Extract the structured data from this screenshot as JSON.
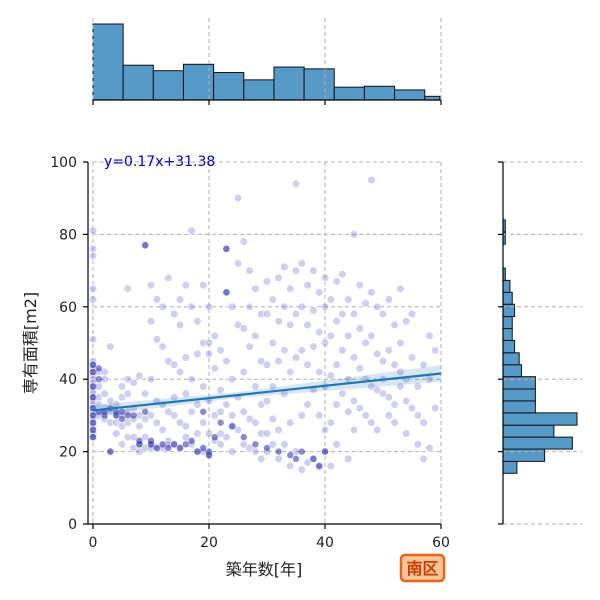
{
  "chart_data": {
    "type": "scatter",
    "xlabel": "築年数[年]",
    "ylabel": "専有面積[m2]",
    "xlim": [
      0,
      60
    ],
    "ylim": [
      0,
      100
    ],
    "xticks": [
      0,
      20,
      40,
      60
    ],
    "yticks": [
      0,
      20,
      40,
      60,
      80,
      100
    ],
    "grid": true,
    "regression": {
      "label": "y=0.17x+31.38",
      "slope": 0.17,
      "intercept": 31.38
    },
    "badge": "南区",
    "colors": {
      "points": "#6a6ad0",
      "regression": "#1f77b4",
      "hist": "#5799c7",
      "label": "#0000cc"
    },
    "points": [
      [
        0,
        81
      ],
      [
        0,
        76
      ],
      [
        0,
        74
      ],
      [
        0,
        65
      ],
      [
        0,
        62
      ],
      [
        0,
        45
      ],
      [
        0,
        44
      ],
      [
        0,
        43
      ],
      [
        0,
        42
      ],
      [
        0,
        41
      ],
      [
        0,
        40
      ],
      [
        0,
        39
      ],
      [
        0,
        38
      ],
      [
        0,
        37
      ],
      [
        0,
        36
      ],
      [
        0,
        35
      ],
      [
        0,
        34
      ],
      [
        0,
        33
      ],
      [
        0,
        32
      ],
      [
        0,
        31
      ],
      [
        0,
        30
      ],
      [
        0,
        29
      ],
      [
        0,
        28
      ],
      [
        0,
        27
      ],
      [
        0,
        26
      ],
      [
        0,
        25
      ],
      [
        0,
        24
      ],
      [
        0,
        51
      ],
      [
        1,
        42
      ],
      [
        1,
        38
      ],
      [
        1,
        35
      ],
      [
        1,
        33
      ],
      [
        1,
        30
      ],
      [
        2,
        42
      ],
      [
        2,
        40
      ],
      [
        2,
        36
      ],
      [
        2,
        32
      ],
      [
        2,
        29
      ],
      [
        3,
        34
      ],
      [
        3,
        31
      ],
      [
        3,
        28
      ],
      [
        3,
        20
      ],
      [
        3,
        49
      ],
      [
        4,
        33
      ],
      [
        4,
        30
      ],
      [
        4,
        28
      ],
      [
        4,
        25
      ],
      [
        5,
        38
      ],
      [
        5,
        35
      ],
      [
        5,
        30
      ],
      [
        5,
        27
      ],
      [
        5,
        22
      ],
      [
        6,
        40
      ],
      [
        6,
        36
      ],
      [
        6,
        31
      ],
      [
        6,
        28
      ],
      [
        6,
        24
      ],
      [
        6,
        65
      ],
      [
        7,
        39
      ],
      [
        7,
        32
      ],
      [
        7,
        29
      ],
      [
        7,
        24
      ],
      [
        7,
        21
      ],
      [
        8,
        41
      ],
      [
        8,
        30
      ],
      [
        8,
        27
      ],
      [
        8,
        22
      ],
      [
        8,
        20
      ],
      [
        9,
        77
      ],
      [
        9,
        36
      ],
      [
        9,
        29
      ],
      [
        9,
        24
      ],
      [
        9,
        21
      ],
      [
        10,
        66
      ],
      [
        10,
        56
      ],
      [
        10,
        40
      ],
      [
        10,
        30
      ],
      [
        10,
        22
      ],
      [
        10,
        21
      ],
      [
        11,
        62
      ],
      [
        11,
        51
      ],
      [
        11,
        34
      ],
      [
        11,
        28
      ],
      [
        11,
        21
      ],
      [
        12,
        60
      ],
      [
        12,
        49
      ],
      [
        12,
        33
      ],
      [
        12,
        26
      ],
      [
        12,
        21
      ],
      [
        13,
        68
      ],
      [
        13,
        45
      ],
      [
        13,
        31
      ],
      [
        13,
        23
      ],
      [
        13,
        22
      ],
      [
        14,
        58
      ],
      [
        14,
        44
      ],
      [
        14,
        30
      ],
      [
        14,
        22
      ],
      [
        14,
        35
      ],
      [
        15,
        62
      ],
      [
        15,
        55
      ],
      [
        15,
        42
      ],
      [
        15,
        28
      ],
      [
        15,
        21
      ],
      [
        16,
        66
      ],
      [
        16,
        46
      ],
      [
        16,
        36
      ],
      [
        16,
        27
      ],
      [
        16,
        24
      ],
      [
        17,
        81
      ],
      [
        17,
        60
      ],
      [
        17,
        40
      ],
      [
        17,
        31
      ],
      [
        17,
        22
      ],
      [
        18,
        56
      ],
      [
        18,
        47
      ],
      [
        18,
        33
      ],
      [
        18,
        25
      ],
      [
        18,
        20
      ],
      [
        19,
        66
      ],
      [
        19,
        50
      ],
      [
        19,
        38
      ],
      [
        19,
        28
      ],
      [
        19,
        20
      ],
      [
        20,
        60
      ],
      [
        20,
        50
      ],
      [
        20,
        47
      ],
      [
        20,
        34
      ],
      [
        20,
        25
      ],
      [
        20,
        19
      ],
      [
        21,
        52
      ],
      [
        21,
        43
      ],
      [
        21,
        30
      ],
      [
        21,
        23
      ],
      [
        22,
        48
      ],
      [
        22,
        37
      ],
      [
        22,
        31
      ],
      [
        22,
        25
      ],
      [
        22,
        22
      ],
      [
        23,
        76
      ],
      [
        23,
        64
      ],
      [
        23,
        45
      ],
      [
        23,
        33
      ],
      [
        23,
        24
      ],
      [
        24,
        60
      ],
      [
        24,
        40
      ],
      [
        24,
        30
      ],
      [
        24,
        27
      ],
      [
        24,
        20
      ],
      [
        25,
        90
      ],
      [
        25,
        72
      ],
      [
        25,
        55
      ],
      [
        25,
        35
      ],
      [
        25,
        26
      ],
      [
        26,
        78
      ],
      [
        26,
        54
      ],
      [
        26,
        42
      ],
      [
        26,
        31
      ],
      [
        26,
        22
      ],
      [
        27,
        70
      ],
      [
        27,
        60
      ],
      [
        27,
        49
      ],
      [
        27,
        29
      ],
      [
        27,
        21
      ],
      [
        28,
        65
      ],
      [
        28,
        52
      ],
      [
        28,
        38
      ],
      [
        28,
        28
      ],
      [
        28,
        20
      ],
      [
        29,
        58
      ],
      [
        29,
        45
      ],
      [
        29,
        33
      ],
      [
        29,
        25
      ],
      [
        29,
        18
      ],
      [
        30,
        67
      ],
      [
        30,
        58
      ],
      [
        30,
        44
      ],
      [
        30,
        34
      ],
      [
        30,
        25
      ],
      [
        30,
        20
      ],
      [
        31,
        62
      ],
      [
        31,
        50
      ],
      [
        31,
        38
      ],
      [
        31,
        29
      ],
      [
        31,
        22
      ],
      [
        32,
        68
      ],
      [
        32,
        56
      ],
      [
        32,
        45
      ],
      [
        32,
        26
      ],
      [
        32,
        18
      ],
      [
        33,
        71
      ],
      [
        33,
        60
      ],
      [
        33,
        48
      ],
      [
        33,
        36
      ],
      [
        33,
        22
      ],
      [
        34,
        65
      ],
      [
        34,
        55
      ],
      [
        34,
        42
      ],
      [
        34,
        28
      ],
      [
        34,
        16
      ],
      [
        35,
        94
      ],
      [
        35,
        70
      ],
      [
        35,
        58
      ],
      [
        35,
        46
      ],
      [
        35,
        20
      ],
      [
        36,
        72
      ],
      [
        36,
        60
      ],
      [
        36,
        48
      ],
      [
        36,
        30
      ],
      [
        36,
        15
      ],
      [
        37,
        66
      ],
      [
        37,
        55
      ],
      [
        37,
        44
      ],
      [
        37,
        33
      ],
      [
        37,
        17
      ],
      [
        38,
        70
      ],
      [
        38,
        59
      ],
      [
        38,
        49
      ],
      [
        38,
        37
      ],
      [
        38,
        18
      ],
      [
        39,
        64
      ],
      [
        39,
        53
      ],
      [
        39,
        42
      ],
      [
        39,
        30
      ],
      [
        39,
        16
      ],
      [
        40,
        68
      ],
      [
        40,
        60
      ],
      [
        40,
        50
      ],
      [
        40,
        38
      ],
      [
        40,
        26
      ],
      [
        40,
        20
      ],
      [
        41,
        62
      ],
      [
        41,
        52
      ],
      [
        41,
        41
      ],
      [
        41,
        28
      ],
      [
        41,
        16
      ],
      [
        42,
        67
      ],
      [
        42,
        56
      ],
      [
        42,
        44
      ],
      [
        42,
        33
      ],
      [
        42,
        22
      ],
      [
        43,
        69
      ],
      [
        43,
        58
      ],
      [
        43,
        48
      ],
      [
        43,
        36
      ],
      [
        44,
        62
      ],
      [
        44,
        52
      ],
      [
        44,
        40
      ],
      [
        44,
        31
      ],
      [
        44,
        18
      ],
      [
        45,
        80
      ],
      [
        45,
        58
      ],
      [
        45,
        46
      ],
      [
        45,
        34
      ],
      [
        45,
        26
      ],
      [
        46,
        66
      ],
      [
        46,
        54
      ],
      [
        46,
        43
      ],
      [
        46,
        32
      ],
      [
        47,
        61
      ],
      [
        47,
        50
      ],
      [
        47,
        40
      ],
      [
        47,
        30
      ],
      [
        48,
        95
      ],
      [
        48,
        64
      ],
      [
        48,
        52
      ],
      [
        48,
        38
      ],
      [
        48,
        28
      ],
      [
        49,
        60
      ],
      [
        49,
        47
      ],
      [
        49,
        37
      ],
      [
        49,
        26
      ],
      [
        50,
        58
      ],
      [
        50,
        45
      ],
      [
        50,
        40
      ],
      [
        50,
        36
      ],
      [
        51,
        62
      ],
      [
        51,
        48
      ],
      [
        51,
        35
      ],
      [
        51,
        30
      ],
      [
        52,
        55
      ],
      [
        52,
        44
      ],
      [
        52,
        33
      ],
      [
        52,
        28
      ],
      [
        53,
        65
      ],
      [
        53,
        50
      ],
      [
        53,
        42
      ],
      [
        53,
        38
      ],
      [
        54,
        56
      ],
      [
        54,
        40
      ],
      [
        54,
        34
      ],
      [
        54,
        25
      ],
      [
        55,
        58
      ],
      [
        55,
        46
      ],
      [
        55,
        32
      ],
      [
        56,
        38
      ],
      [
        56,
        30
      ],
      [
        56,
        22
      ],
      [
        57,
        44
      ],
      [
        57,
        28
      ],
      [
        57,
        18
      ],
      [
        58,
        52
      ],
      [
        58,
        40
      ],
      [
        58,
        21
      ],
      [
        59,
        48
      ],
      [
        59,
        32
      ]
    ],
    "dark_points": [
      [
        0,
        44
      ],
      [
        0,
        42
      ],
      [
        0,
        38
      ],
      [
        0,
        35
      ],
      [
        0,
        32
      ],
      [
        0,
        30
      ],
      [
        0,
        28
      ],
      [
        0,
        26
      ],
      [
        0,
        24
      ],
      [
        1,
        43
      ],
      [
        1,
        40
      ],
      [
        1,
        31
      ],
      [
        2,
        31
      ],
      [
        2,
        30
      ],
      [
        3,
        32
      ],
      [
        3,
        20
      ],
      [
        4,
        31
      ],
      [
        4,
        30
      ],
      [
        5,
        31
      ],
      [
        5,
        29
      ],
      [
        6,
        30
      ],
      [
        7,
        30
      ],
      [
        8,
        23
      ],
      [
        8,
        22
      ],
      [
        9,
        77
      ],
      [
        9,
        31
      ],
      [
        10,
        23
      ],
      [
        10,
        22
      ],
      [
        11,
        21
      ],
      [
        12,
        22
      ],
      [
        13,
        21
      ],
      [
        14,
        22
      ],
      [
        15,
        21
      ],
      [
        16,
        22
      ],
      [
        17,
        23
      ],
      [
        18,
        20
      ],
      [
        19,
        21
      ],
      [
        19,
        31
      ],
      [
        20,
        20
      ],
      [
        20,
        19
      ],
      [
        21,
        24
      ],
      [
        22,
        28
      ],
      [
        23,
        64
      ],
      [
        23,
        76
      ],
      [
        24,
        27
      ],
      [
        26,
        24
      ],
      [
        28,
        22
      ],
      [
        30,
        21
      ],
      [
        32,
        20
      ],
      [
        34,
        19
      ],
      [
        35,
        18
      ],
      [
        36,
        20
      ],
      [
        38,
        18
      ],
      [
        39,
        16
      ],
      [
        40,
        20
      ]
    ],
    "hist_x": {
      "bin_edges": [
        0,
        5.2,
        10.4,
        15.6,
        20.8,
        26,
        31.2,
        36.4,
        41.6,
        46.8,
        52,
        57.2,
        59.8
      ],
      "counts": [
        83,
        38,
        32,
        39,
        30,
        22,
        36,
        34,
        14,
        15,
        11,
        4
      ]
    },
    "hist_y": {
      "bin_edges": [
        14,
        17.3,
        20.7,
        24,
        27.3,
        30.7,
        34,
        37.3,
        40.7,
        44,
        47.3,
        50.7,
        54,
        57.3,
        60.7,
        64,
        67.3,
        70.7,
        74,
        77.3,
        80.7,
        84,
        87.3,
        90.7,
        94,
        97.3
      ],
      "counts": [
        6,
        18,
        30,
        22,
        32,
        14,
        14,
        14,
        8,
        7,
        5,
        4,
        4,
        5,
        4,
        3,
        1,
        0,
        0,
        1,
        1,
        0,
        0,
        0,
        0
      ]
    }
  }
}
